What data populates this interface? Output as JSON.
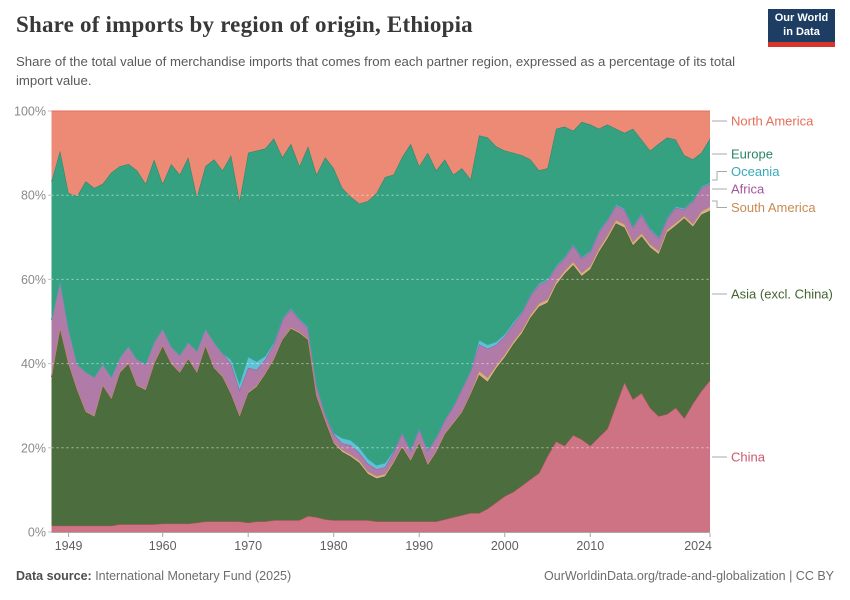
{
  "header": {
    "title": "Share of imports by region of origin, Ethiopia",
    "subtitle": "Share of the total value of merchandise imports that comes from each partner region, expressed as a percentage of its total import value.",
    "logo": {
      "line1": "Our World",
      "line2": "in Data"
    }
  },
  "brand": {
    "navy": "#1d3d63",
    "red": "#d7352b"
  },
  "footer": {
    "source_label": "Data source:",
    "source_value": " International Monetary Fund (2025)",
    "link": "OurWorldinData.org/trade-and-globalization",
    "separator": " | ",
    "license": "CC BY"
  },
  "axis": {
    "y_tick_labels": [
      "0%",
      "20%",
      "40%",
      "60%",
      "80%",
      "100%"
    ],
    "x_tick_labels": [
      "1949",
      "1960",
      "1970",
      "1980",
      "1990",
      "2000",
      "2010",
      "2024"
    ]
  },
  "chart_data": {
    "type": "area",
    "stacked": true,
    "unit": "%",
    "title": "Share of imports by region of origin, Ethiopia",
    "xlabel": "",
    "ylabel": "",
    "xlim": [
      1947,
      2024
    ],
    "ylim": [
      0,
      100
    ],
    "grid": "dashed-horizontal",
    "legend_position": "right",
    "yticks": [
      0,
      20,
      40,
      60,
      80,
      100
    ],
    "xticks": [
      1949,
      1960,
      1970,
      1980,
      1990,
      2000,
      2010,
      2024
    ],
    "x": [
      1947,
      1948,
      1949,
      1950,
      1951,
      1952,
      1953,
      1954,
      1955,
      1956,
      1957,
      1958,
      1959,
      1960,
      1961,
      1962,
      1963,
      1964,
      1965,
      1966,
      1967,
      1968,
      1969,
      1970,
      1971,
      1972,
      1973,
      1974,
      1975,
      1976,
      1977,
      1978,
      1979,
      1980,
      1981,
      1982,
      1983,
      1984,
      1985,
      1986,
      1987,
      1988,
      1989,
      1990,
      1991,
      1992,
      1993,
      1994,
      1995,
      1996,
      1997,
      1998,
      1999,
      2000,
      2001,
      2002,
      2003,
      2004,
      2005,
      2006,
      2007,
      2008,
      2009,
      2010,
      2011,
      2012,
      2013,
      2014,
      2015,
      2016,
      2017,
      2018,
      2019,
      2020,
      2021,
      2022,
      2023,
      2024
    ],
    "series": [
      {
        "name": "China",
        "fill": "#cd7384",
        "line": "#c05065",
        "text_color": "#cb5871",
        "values": [
          1.5,
          1.5,
          1.5,
          1.5,
          1.5,
          1.5,
          1.5,
          1.5,
          1.8,
          1.8,
          1.8,
          1.8,
          1.8,
          2.0,
          2.0,
          2.0,
          2.0,
          2.2,
          2.5,
          2.5,
          2.5,
          2.5,
          2.5,
          2.2,
          2.5,
          2.5,
          2.8,
          2.8,
          2.8,
          2.8,
          3.8,
          3.5,
          3.0,
          2.8,
          2.8,
          2.8,
          2.8,
          2.8,
          2.5,
          2.5,
          2.5,
          2.5,
          2.5,
          2.5,
          2.5,
          2.5,
          3.0,
          3.5,
          4.0,
          4.5,
          4.5,
          5.5,
          7.0,
          8.5,
          9.5,
          11.0,
          12.5,
          14.0,
          18.0,
          21.5,
          20.5,
          23.0,
          22.0,
          20.5,
          22.5,
          24.5,
          30.0,
          35.5,
          31.5,
          33.0,
          29.5,
          27.5,
          28.0,
          29.5,
          27.0,
          30.5,
          33.5,
          36.0
        ]
      },
      {
        "name": "Asia (excl. China)",
        "fill": "#4c6e3e",
        "line": "#3e5c31",
        "text_color": "#446231",
        "values": [
          35.3,
          46.8,
          38.4,
          32.2,
          27.0,
          25.9,
          33.2,
          30.1,
          36.0,
          38.1,
          32.9,
          31.9,
          38.1,
          42.1,
          37.9,
          35.8,
          39.0,
          35.6,
          41.6,
          36.4,
          34.3,
          30.1,
          24.9,
          30.8,
          32.0,
          35.0,
          38.1,
          42.8,
          45.5,
          44.4,
          41.8,
          28.6,
          23.3,
          18.3,
          16.2,
          15.1,
          13.6,
          11.0,
          10.2,
          10.7,
          13.9,
          17.6,
          14.4,
          18.6,
          13.4,
          16.5,
          20.2,
          22.3,
          24.4,
          28.1,
          32.8,
          30.2,
          31.9,
          33.0,
          35.1,
          36.2,
          38.4,
          39.5,
          36.5,
          37.2,
          40.8,
          40.4,
          38.8,
          41.9,
          44.0,
          45.2,
          43.3,
          36.8,
          36.6,
          37.2,
          38.1,
          38.5,
          43.2,
          43.3,
          47.5,
          42.0,
          41.9,
          40.3
        ]
      },
      {
        "name": "South America",
        "fill": "#d5b087",
        "line": "#c78a52",
        "text_color": "#c78a52",
        "values": [
          0.2,
          0.2,
          0.2,
          0.2,
          0.2,
          0.2,
          0.2,
          0.2,
          0.2,
          0.2,
          0.2,
          0.2,
          0.2,
          0.2,
          0.2,
          0.2,
          0.2,
          0.2,
          0.2,
          0.2,
          0.2,
          0.3,
          0.3,
          0.3,
          0.3,
          0.3,
          0.3,
          0.3,
          0.3,
          0.3,
          0.3,
          0.3,
          0.3,
          0.3,
          0.5,
          0.5,
          0.6,
          0.6,
          0.6,
          0.6,
          0.4,
          0.3,
          0.3,
          0.3,
          0.3,
          0.3,
          0.3,
          0.3,
          0.3,
          0.3,
          1.0,
          1.0,
          0.7,
          0.7,
          0.7,
          0.7,
          0.7,
          0.8,
          0.8,
          0.8,
          0.8,
          0.8,
          0.8,
          0.8,
          0.8,
          0.8,
          0.8,
          0.8,
          0.8,
          0.8,
          0.8,
          0.8,
          0.7,
          0.7,
          0.6,
          0.7,
          0.8,
          1.0
        ]
      },
      {
        "name": "Africa",
        "fill": "#b07ba6",
        "line": "#a2559c",
        "text_color": "#a2559c",
        "values": [
          13.4,
          11.2,
          8.2,
          6.0,
          9.3,
          9.2,
          5.0,
          5.0,
          3.5,
          4.0,
          6.1,
          6.0,
          5.0,
          4.0,
          4.0,
          4.0,
          3.9,
          5.0,
          4.0,
          6.0,
          5.5,
          7.0,
          6.0,
          5.7,
          3.7,
          3.2,
          3.4,
          4.5,
          4.3,
          2.9,
          2.4,
          2.3,
          1.3,
          1.8,
          1.6,
          2.2,
          1.8,
          1.8,
          1.6,
          1.6,
          2.2,
          3.1,
          2.1,
          3.1,
          3.1,
          3.1,
          3.1,
          3.7,
          5.3,
          5.2,
          6.3,
          6.8,
          4.9,
          4.3,
          4.0,
          4.1,
          4.5,
          4.4,
          4.4,
          3.4,
          2.9,
          3.9,
          3.4,
          3.3,
          3.9,
          3.4,
          3.4,
          3.4,
          3.4,
          4.4,
          3.4,
          2.9,
          2.5,
          3.5,
          1.5,
          5.3,
          5.5,
          5.4
        ]
      },
      {
        "name": "Oceania",
        "fill": "#5fc2d4",
        "line": "#38aaba",
        "text_color": "#38aaba",
        "values": [
          0,
          0,
          0,
          0,
          0,
          0,
          0,
          0,
          0,
          0,
          0,
          0,
          0,
          0,
          0,
          0,
          0,
          0,
          0,
          0,
          0,
          1.0,
          1.5,
          2.6,
          2.0,
          0.8,
          0.4,
          0.3,
          0.3,
          0.3,
          0.3,
          0.3,
          0.3,
          0.3,
          1.2,
          1.2,
          1.3,
          1.2,
          1.0,
          1.0,
          0.3,
          0.2,
          0.2,
          0.2,
          0.2,
          0.2,
          0.2,
          0.2,
          0.2,
          0.2,
          1.0,
          1.0,
          0.7,
          0.5,
          0.5,
          0.3,
          0.3,
          0.3,
          0.3,
          0.3,
          0.3,
          0.3,
          0.3,
          0.3,
          0.3,
          0.3,
          0.3,
          0.3,
          0.3,
          0.3,
          0.3,
          0.3,
          0.3,
          0.3,
          0.3,
          0.3,
          0.3,
          0.3
        ]
      },
      {
        "name": "Europe",
        "fill": "#35a181",
        "line": "#2c8465",
        "text_color": "#2c8465",
        "values": [
          32.9,
          30.9,
          32.2,
          39.9,
          45.3,
          44.9,
          42.8,
          48.6,
          45.4,
          43.3,
          44.9,
          42.8,
          43.4,
          34.4,
          43.3,
          42.9,
          43.9,
          36.6,
          38.6,
          43.4,
          43.4,
          48.6,
          43.4,
          48.5,
          50.1,
          49.3,
          48.5,
          38.3,
          39.0,
          36.2,
          43.0,
          49.9,
          60.8,
          62.9,
          59.4,
          57.8,
          57.9,
          61.2,
          64.6,
          67.9,
          65.6,
          65.3,
          72.7,
          62.2,
          70.6,
          63.3,
          61.7,
          54.9,
          52.2,
          45.5,
          48.6,
          49.2,
          46.4,
          43.6,
          40.3,
          37.2,
          32.1,
          26.9,
          26.4,
          32.6,
          31.0,
          26.9,
          32.1,
          30.0,
          24.3,
          22.6,
          18.0,
          18.0,
          23.2,
          17.5,
          18.5,
          22.2,
          19.0,
          15.9,
          12.6,
          9.7,
          8.1,
          10.5
        ]
      },
      {
        "name": "North America",
        "fill": "#ec8a76",
        "line": "#e56e5a",
        "text_color": "#e56e5a",
        "values": [
          16.7,
          9.4,
          19.5,
          20.2,
          16.7,
          18.3,
          17.3,
          14.6,
          13.1,
          12.6,
          14.1,
          17.3,
          11.5,
          17.3,
          12.6,
          15.1,
          11.0,
          20.4,
          13.1,
          11.5,
          14.1,
          10.5,
          21.4,
          9.9,
          9.4,
          8.9,
          6.5,
          11.0,
          7.8,
          13.1,
          8.4,
          15.1,
          11.0,
          13.6,
          18.3,
          20.4,
          22.0,
          21.4,
          19.5,
          15.7,
          15.1,
          11.0,
          7.8,
          13.1,
          9.9,
          14.1,
          11.5,
          15.1,
          13.6,
          16.2,
          5.8,
          6.3,
          8.4,
          9.4,
          9.9,
          10.5,
          11.5,
          14.1,
          13.6,
          4.2,
          3.7,
          4.7,
          2.6,
          3.2,
          4.2,
          3.2,
          4.2,
          5.2,
          4.2,
          6.8,
          9.4,
          7.8,
          6.3,
          6.8,
          10.5,
          11.5,
          9.9,
          6.5
        ]
      }
    ]
  }
}
